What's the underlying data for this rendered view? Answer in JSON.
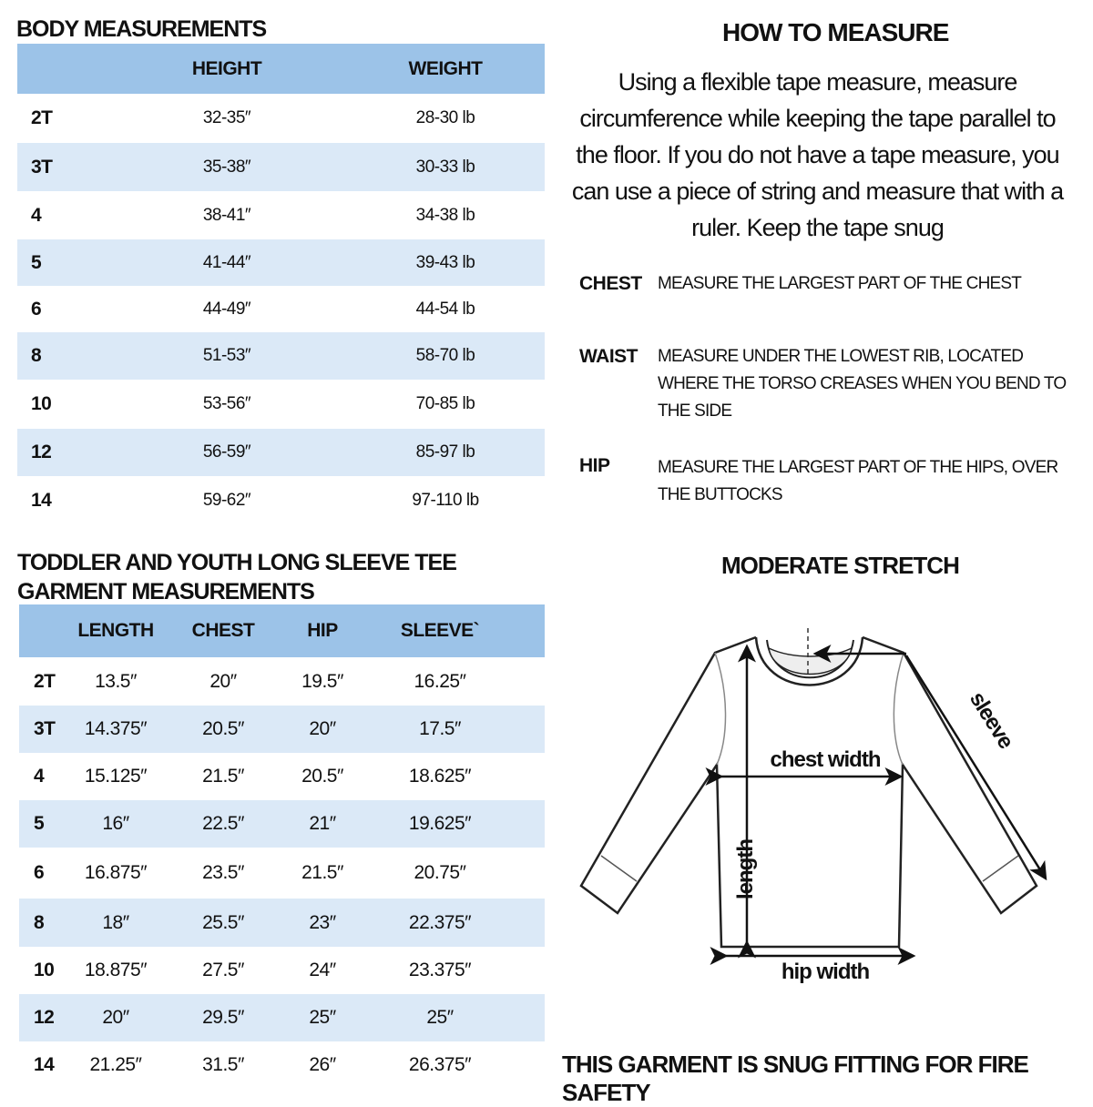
{
  "body_measurements": {
    "title": "BODY MEASUREMENTS",
    "columns": [
      "",
      "HEIGHT",
      "WEIGHT"
    ],
    "rows": [
      {
        "size": "2T",
        "height": "32-35″",
        "weight": "28-30 lb"
      },
      {
        "size": "3T",
        "height": "35-38″",
        "weight": "30-33 lb"
      },
      {
        "size": "4",
        "height": "38-41″",
        "weight": "34-38 lb"
      },
      {
        "size": "5",
        "height": "41-44″",
        "weight": "39-43 lb"
      },
      {
        "size": "6",
        "height": "44-49″",
        "weight": "44-54 lb"
      },
      {
        "size": "8",
        "height": "51-53″",
        "weight": "58-70 lb"
      },
      {
        "size": "10",
        "height": "53-56″",
        "weight": "70-85 lb"
      },
      {
        "size": "12",
        "height": "56-59″",
        "weight": "85-97 lb"
      },
      {
        "size": "14",
        "height": "59-62″",
        "weight": "97-110 lb"
      }
    ]
  },
  "garment_measurements": {
    "title_line1": "TODDLER AND YOUTH LONG SLEEVE TEE",
    "title_line2": "GARMENT MEASUREMENTS",
    "columns": [
      "",
      "LENGTH",
      "CHEST",
      "HIP",
      "SLEEVE`"
    ],
    "rows": [
      {
        "size": "2T",
        "length": "13.5″",
        "chest": "20″",
        "hip": "19.5″",
        "sleeve": "16.25″"
      },
      {
        "size": "3T",
        "length": "14.375″",
        "chest": "20.5″",
        "hip": "20″",
        "sleeve": "17.5″"
      },
      {
        "size": "4",
        "length": "15.125″",
        "chest": "21.5″",
        "hip": "20.5″",
        "sleeve": "18.625″"
      },
      {
        "size": "5",
        "length": "16″",
        "chest": "22.5″",
        "hip": "21″",
        "sleeve": "19.625″"
      },
      {
        "size": "6",
        "length": "16.875″",
        "chest": "23.5″",
        "hip": "21.5″",
        "sleeve": "20.75″"
      },
      {
        "size": "8",
        "length": "18″",
        "chest": "25.5″",
        "hip": "23″",
        "sleeve": "22.375″"
      },
      {
        "size": "10",
        "length": "18.875″",
        "chest": "27.5″",
        "hip": "24″",
        "sleeve": "23.375″"
      },
      {
        "size": "12",
        "length": "20″",
        "chest": "29.5″",
        "hip": "25″",
        "sleeve": "25″"
      },
      {
        "size": "14",
        "length": "21.25″",
        "chest": "31.5″",
        "hip": "26″",
        "sleeve": "26.375″"
      }
    ]
  },
  "how_to_measure": {
    "title": "HOW TO MEASURE",
    "intro": "Using a flexible tape measure, measure circumference while keeping the tape parallel to the floor.  If you do not have a tape measure, you can use a piece of string and measure that with a ruler. Keep the tape snug",
    "items": [
      {
        "term": "CHEST",
        "definition": "MEASURE THE LARGEST PART OF THE CHEST"
      },
      {
        "term": "WAIST",
        "definition": "MEASURE UNDER THE LOWEST RIB, LOCATED WHERE THE TORSO CREASES WHEN YOU BEND TO THE SIDE"
      },
      {
        "term": "HIP",
        "definition": "MEASURE THE LARGEST PART OF THE HIPS, OVER THE BUTTOCKS"
      }
    ]
  },
  "diagram": {
    "title": "MODERATE STRETCH",
    "labels": {
      "chest": "chest width",
      "hip": "hip width",
      "length": "length",
      "sleeve": "sleeve"
    }
  },
  "footer": "THIS GARMENT IS SNUG FITTING FOR FIRE SAFETY",
  "colors": {
    "header_blue": "#9cc3e8",
    "stripe_blue": "#dbe9f7"
  }
}
